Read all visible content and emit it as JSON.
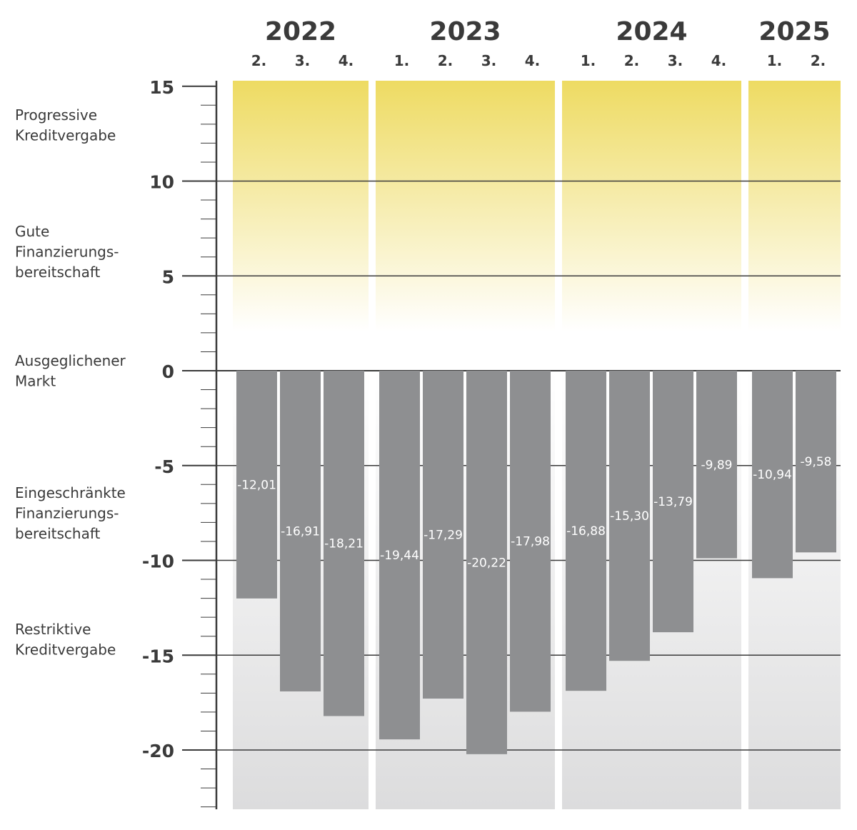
{
  "chart_data": {
    "type": "bar",
    "years": [
      {
        "label": "2022",
        "quarters": [
          "2.",
          "3.",
          "4."
        ]
      },
      {
        "label": "2023",
        "quarters": [
          "1.",
          "2.",
          "3.",
          "4."
        ]
      },
      {
        "label": "2024",
        "quarters": [
          "1.",
          "2.",
          "3.",
          "4."
        ]
      },
      {
        "label": "2025",
        "quarters": [
          "1.",
          "2."
        ]
      }
    ],
    "categories": [
      "2022 2.",
      "2022 3.",
      "2022 4.",
      "2023 1.",
      "2023 2.",
      "2023 3.",
      "2023 4.",
      "2024 1.",
      "2024 2.",
      "2024 3.",
      "2024 4.",
      "2025 1.",
      "2025 2."
    ],
    "values": [
      -12.01,
      -16.91,
      -18.21,
      -19.44,
      -17.29,
      -20.22,
      -17.98,
      -16.88,
      -15.3,
      -13.79,
      -9.89,
      -10.94,
      -9.58
    ],
    "value_labels": [
      "-12,01",
      "-16,91",
      "-18,21",
      "-19,44",
      "-17,29",
      "-20,22",
      "-17,98",
      "-16,88",
      "-15,30",
      "-13,79",
      "-9,89",
      "-10,94",
      "-9,58"
    ],
    "ylim": [
      -23,
      15
    ],
    "yticks": [
      15,
      10,
      5,
      0,
      -5,
      -10,
      -15,
      -20
    ],
    "ytick_labels": [
      "15",
      "10",
      "5",
      "0",
      "-5",
      "-10",
      "-15",
      "-20"
    ],
    "gridlines": [
      10,
      5,
      0,
      -5,
      -10,
      -15,
      -20
    ],
    "zones": [
      {
        "lines": [
          "Progressive",
          "Kreditvergabe"
        ]
      },
      {
        "lines": [
          "Gute",
          "Finanzierungs-",
          "bereitschaft"
        ]
      },
      {
        "lines": [
          "Ausgeglichener",
          "Markt"
        ]
      },
      {
        "lines": [
          "Eingeschränkte",
          "Finanzierungs-",
          "bereitschaft"
        ]
      },
      {
        "lines": [
          "Restriktive",
          "Kreditvergabe"
        ]
      }
    ],
    "colors": {
      "bar": "#8e8f91",
      "positive_zone": "#eedb62",
      "negative_zone": "#dcdcdd",
      "axis": "#3a3a3a",
      "text": "#3a3a3a"
    },
    "xlabel": "",
    "ylabel": ""
  }
}
